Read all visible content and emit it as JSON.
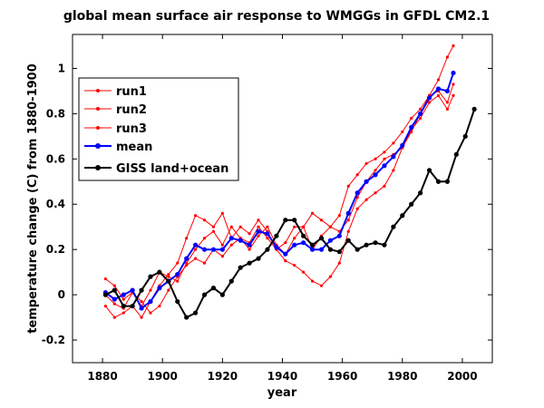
{
  "chart_data": {
    "type": "line",
    "title": "global mean surface air response to WMGGs in GFDL CM2.1",
    "xlabel": "year",
    "ylabel": "temperature change (C) from 1880-1900",
    "xlim": [
      1870,
      2010
    ],
    "ylim": [
      -0.3,
      1.15
    ],
    "xticks": [
      1880,
      1900,
      1920,
      1940,
      1960,
      1980,
      2000
    ],
    "yticks": [
      -0.2,
      0,
      0.2,
      0.4,
      0.6,
      0.8,
      1
    ],
    "ytick_labels": [
      "-0.2",
      "0",
      "0.2",
      "0.4",
      "0.6",
      "0.8",
      "1"
    ],
    "grid": false,
    "legend_position": "top-left",
    "series": [
      {
        "name": "run1",
        "color": "#ff0000",
        "marker": "dot",
        "line_width": 1,
        "x": [
          1881,
          1884,
          1887,
          1890,
          1893,
          1896,
          1899,
          1902,
          1905,
          1908,
          1911,
          1914,
          1917,
          1920,
          1923,
          1926,
          1929,
          1932,
          1935,
          1938,
          1941,
          1944,
          1947,
          1950,
          1953,
          1956,
          1959,
          1962,
          1965,
          1968,
          1971,
          1974,
          1977,
          1980,
          1983,
          1986,
          1989,
          1992,
          1995,
          1997
        ],
        "y": [
          0.07,
          0.04,
          -0.02,
          0.01,
          -0.05,
          0.02,
          0.1,
          0.08,
          0.06,
          0.14,
          0.2,
          0.25,
          0.28,
          0.22,
          0.3,
          0.25,
          0.2,
          0.26,
          0.3,
          0.22,
          0.18,
          0.25,
          0.3,
          0.2,
          0.26,
          0.3,
          0.28,
          0.33,
          0.43,
          0.5,
          0.55,
          0.6,
          0.62,
          0.65,
          0.72,
          0.8,
          0.88,
          0.95,
          1.05,
          1.1
        ]
      },
      {
        "name": "run2",
        "color": "#ff0000",
        "marker": "dot",
        "line_width": 1,
        "x": [
          1881,
          1884,
          1887,
          1890,
          1893,
          1896,
          1899,
          1902,
          1905,
          1908,
          1911,
          1914,
          1917,
          1920,
          1923,
          1926,
          1929,
          1932,
          1935,
          1938,
          1941,
          1944,
          1947,
          1950,
          1953,
          1956,
          1959,
          1962,
          1965,
          1968,
          1971,
          1974,
          1977,
          1980,
          1983,
          1986,
          1989,
          1992,
          1995,
          1997
        ],
        "y": [
          -0.05,
          -0.1,
          -0.08,
          -0.05,
          -0.1,
          -0.03,
          0.04,
          0.09,
          0.14,
          0.25,
          0.35,
          0.33,
          0.3,
          0.36,
          0.25,
          0.3,
          0.27,
          0.33,
          0.28,
          0.2,
          0.23,
          0.3,
          0.3,
          0.36,
          0.33,
          0.3,
          0.35,
          0.48,
          0.53,
          0.58,
          0.6,
          0.63,
          0.67,
          0.72,
          0.78,
          0.82,
          0.88,
          0.9,
          0.85,
          0.93
        ]
      },
      {
        "name": "run3",
        "color": "#ff0000",
        "marker": "dot",
        "line_width": 1,
        "x": [
          1881,
          1884,
          1887,
          1890,
          1893,
          1896,
          1899,
          1902,
          1905,
          1908,
          1911,
          1914,
          1917,
          1920,
          1923,
          1926,
          1929,
          1932,
          1935,
          1938,
          1941,
          1944,
          1947,
          1950,
          1953,
          1956,
          1959,
          1962,
          1965,
          1968,
          1971,
          1974,
          1977,
          1980,
          1983,
          1986,
          1989,
          1992,
          1995,
          1997
        ],
        "y": [
          0.0,
          -0.04,
          -0.06,
          0.01,
          -0.03,
          -0.08,
          -0.05,
          0.02,
          0.08,
          0.13,
          0.16,
          0.14,
          0.2,
          0.17,
          0.22,
          0.25,
          0.23,
          0.3,
          0.25,
          0.2,
          0.15,
          0.13,
          0.1,
          0.06,
          0.04,
          0.08,
          0.14,
          0.28,
          0.38,
          0.42,
          0.45,
          0.48,
          0.55,
          0.65,
          0.73,
          0.78,
          0.85,
          0.88,
          0.82,
          0.88
        ]
      },
      {
        "name": "mean",
        "color": "#0000ff",
        "marker": "dot",
        "line_width": 2,
        "x": [
          1881,
          1884,
          1887,
          1890,
          1893,
          1896,
          1899,
          1902,
          1905,
          1908,
          1911,
          1914,
          1917,
          1920,
          1923,
          1926,
          1929,
          1932,
          1935,
          1938,
          1941,
          1944,
          1947,
          1950,
          1953,
          1956,
          1959,
          1962,
          1965,
          1968,
          1971,
          1974,
          1977,
          1980,
          1983,
          1986,
          1989,
          1992,
          1995,
          1997
        ],
        "y": [
          0.01,
          -0.02,
          0.0,
          0.02,
          -0.06,
          -0.03,
          0.03,
          0.06,
          0.09,
          0.16,
          0.22,
          0.2,
          0.2,
          0.2,
          0.25,
          0.24,
          0.22,
          0.28,
          0.27,
          0.21,
          0.18,
          0.22,
          0.23,
          0.2,
          0.2,
          0.24,
          0.26,
          0.36,
          0.45,
          0.5,
          0.53,
          0.57,
          0.61,
          0.66,
          0.74,
          0.8,
          0.87,
          0.91,
          0.9,
          0.98
        ]
      },
      {
        "name": "GISS land+ocean",
        "color": "#000000",
        "marker": "dot",
        "line_width": 2,
        "x": [
          1881,
          1884,
          1887,
          1890,
          1893,
          1896,
          1899,
          1902,
          1905,
          1908,
          1911,
          1914,
          1917,
          1920,
          1923,
          1926,
          1929,
          1932,
          1935,
          1938,
          1941,
          1944,
          1947,
          1950,
          1953,
          1956,
          1959,
          1962,
          1965,
          1968,
          1971,
          1974,
          1977,
          1980,
          1983,
          1986,
          1989,
          1992,
          1995,
          1998,
          2001,
          2004
        ],
        "y": [
          0.0,
          0.02,
          -0.05,
          -0.05,
          0.02,
          0.08,
          0.1,
          0.06,
          -0.03,
          -0.1,
          -0.08,
          0.0,
          0.03,
          0.0,
          0.06,
          0.12,
          0.14,
          0.16,
          0.2,
          0.26,
          0.33,
          0.33,
          0.26,
          0.22,
          0.25,
          0.2,
          0.19,
          0.24,
          0.2,
          0.22,
          0.23,
          0.22,
          0.3,
          0.35,
          0.4,
          0.45,
          0.55,
          0.5,
          0.5,
          0.62,
          0.7,
          0.82
        ]
      }
    ]
  }
}
